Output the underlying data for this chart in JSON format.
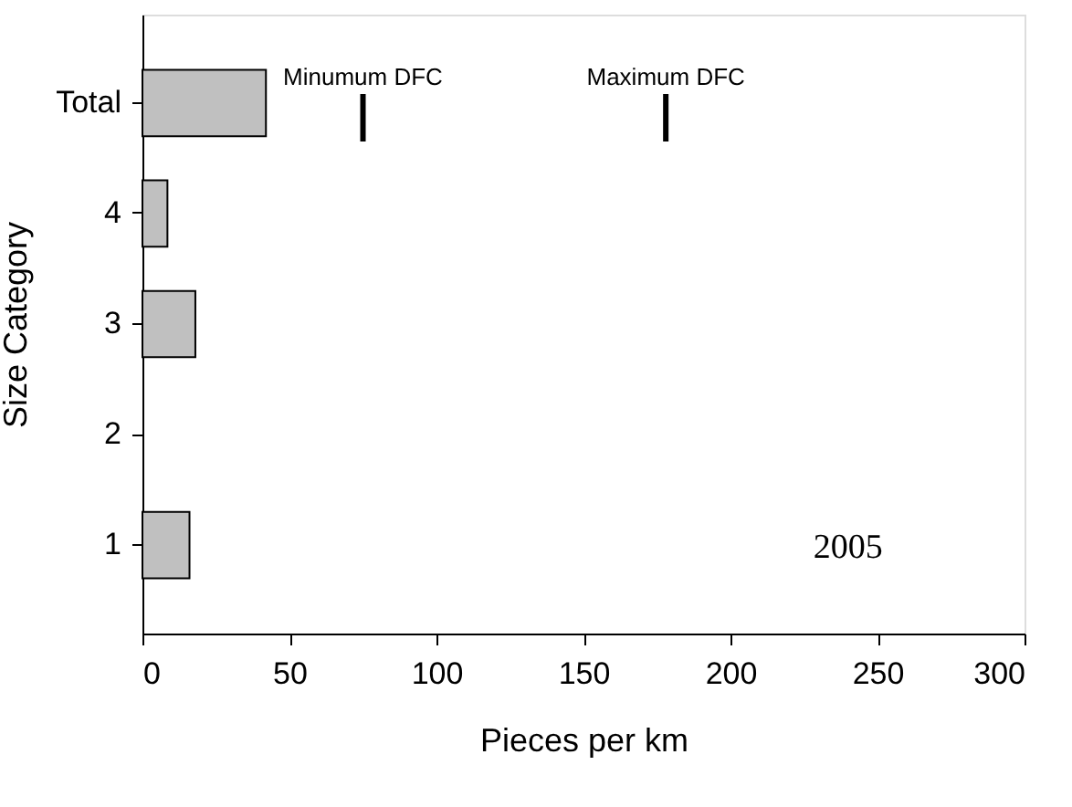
{
  "chart_data": {
    "type": "bar",
    "orientation": "horizontal",
    "categories": [
      "Total",
      "4",
      "3",
      "2",
      "1"
    ],
    "values": [
      42,
      8.5,
      18,
      null,
      16
    ],
    "color": "#c0c0c0",
    "ref_lines": [
      {
        "axis": "x",
        "value": 75,
        "label": "Minumum DFC",
        "color": "#000000"
      },
      {
        "axis": "x",
        "value": 178,
        "label": "Maximum DFC",
        "color": "#000000"
      }
    ],
    "xlabel": "Pieces per km",
    "ylabel": "Size Category",
    "xlim": [
      0,
      300
    ],
    "xticks": [
      0,
      50,
      100,
      150,
      200,
      250,
      300
    ],
    "grid": false,
    "annotations": [
      "2005"
    ]
  }
}
